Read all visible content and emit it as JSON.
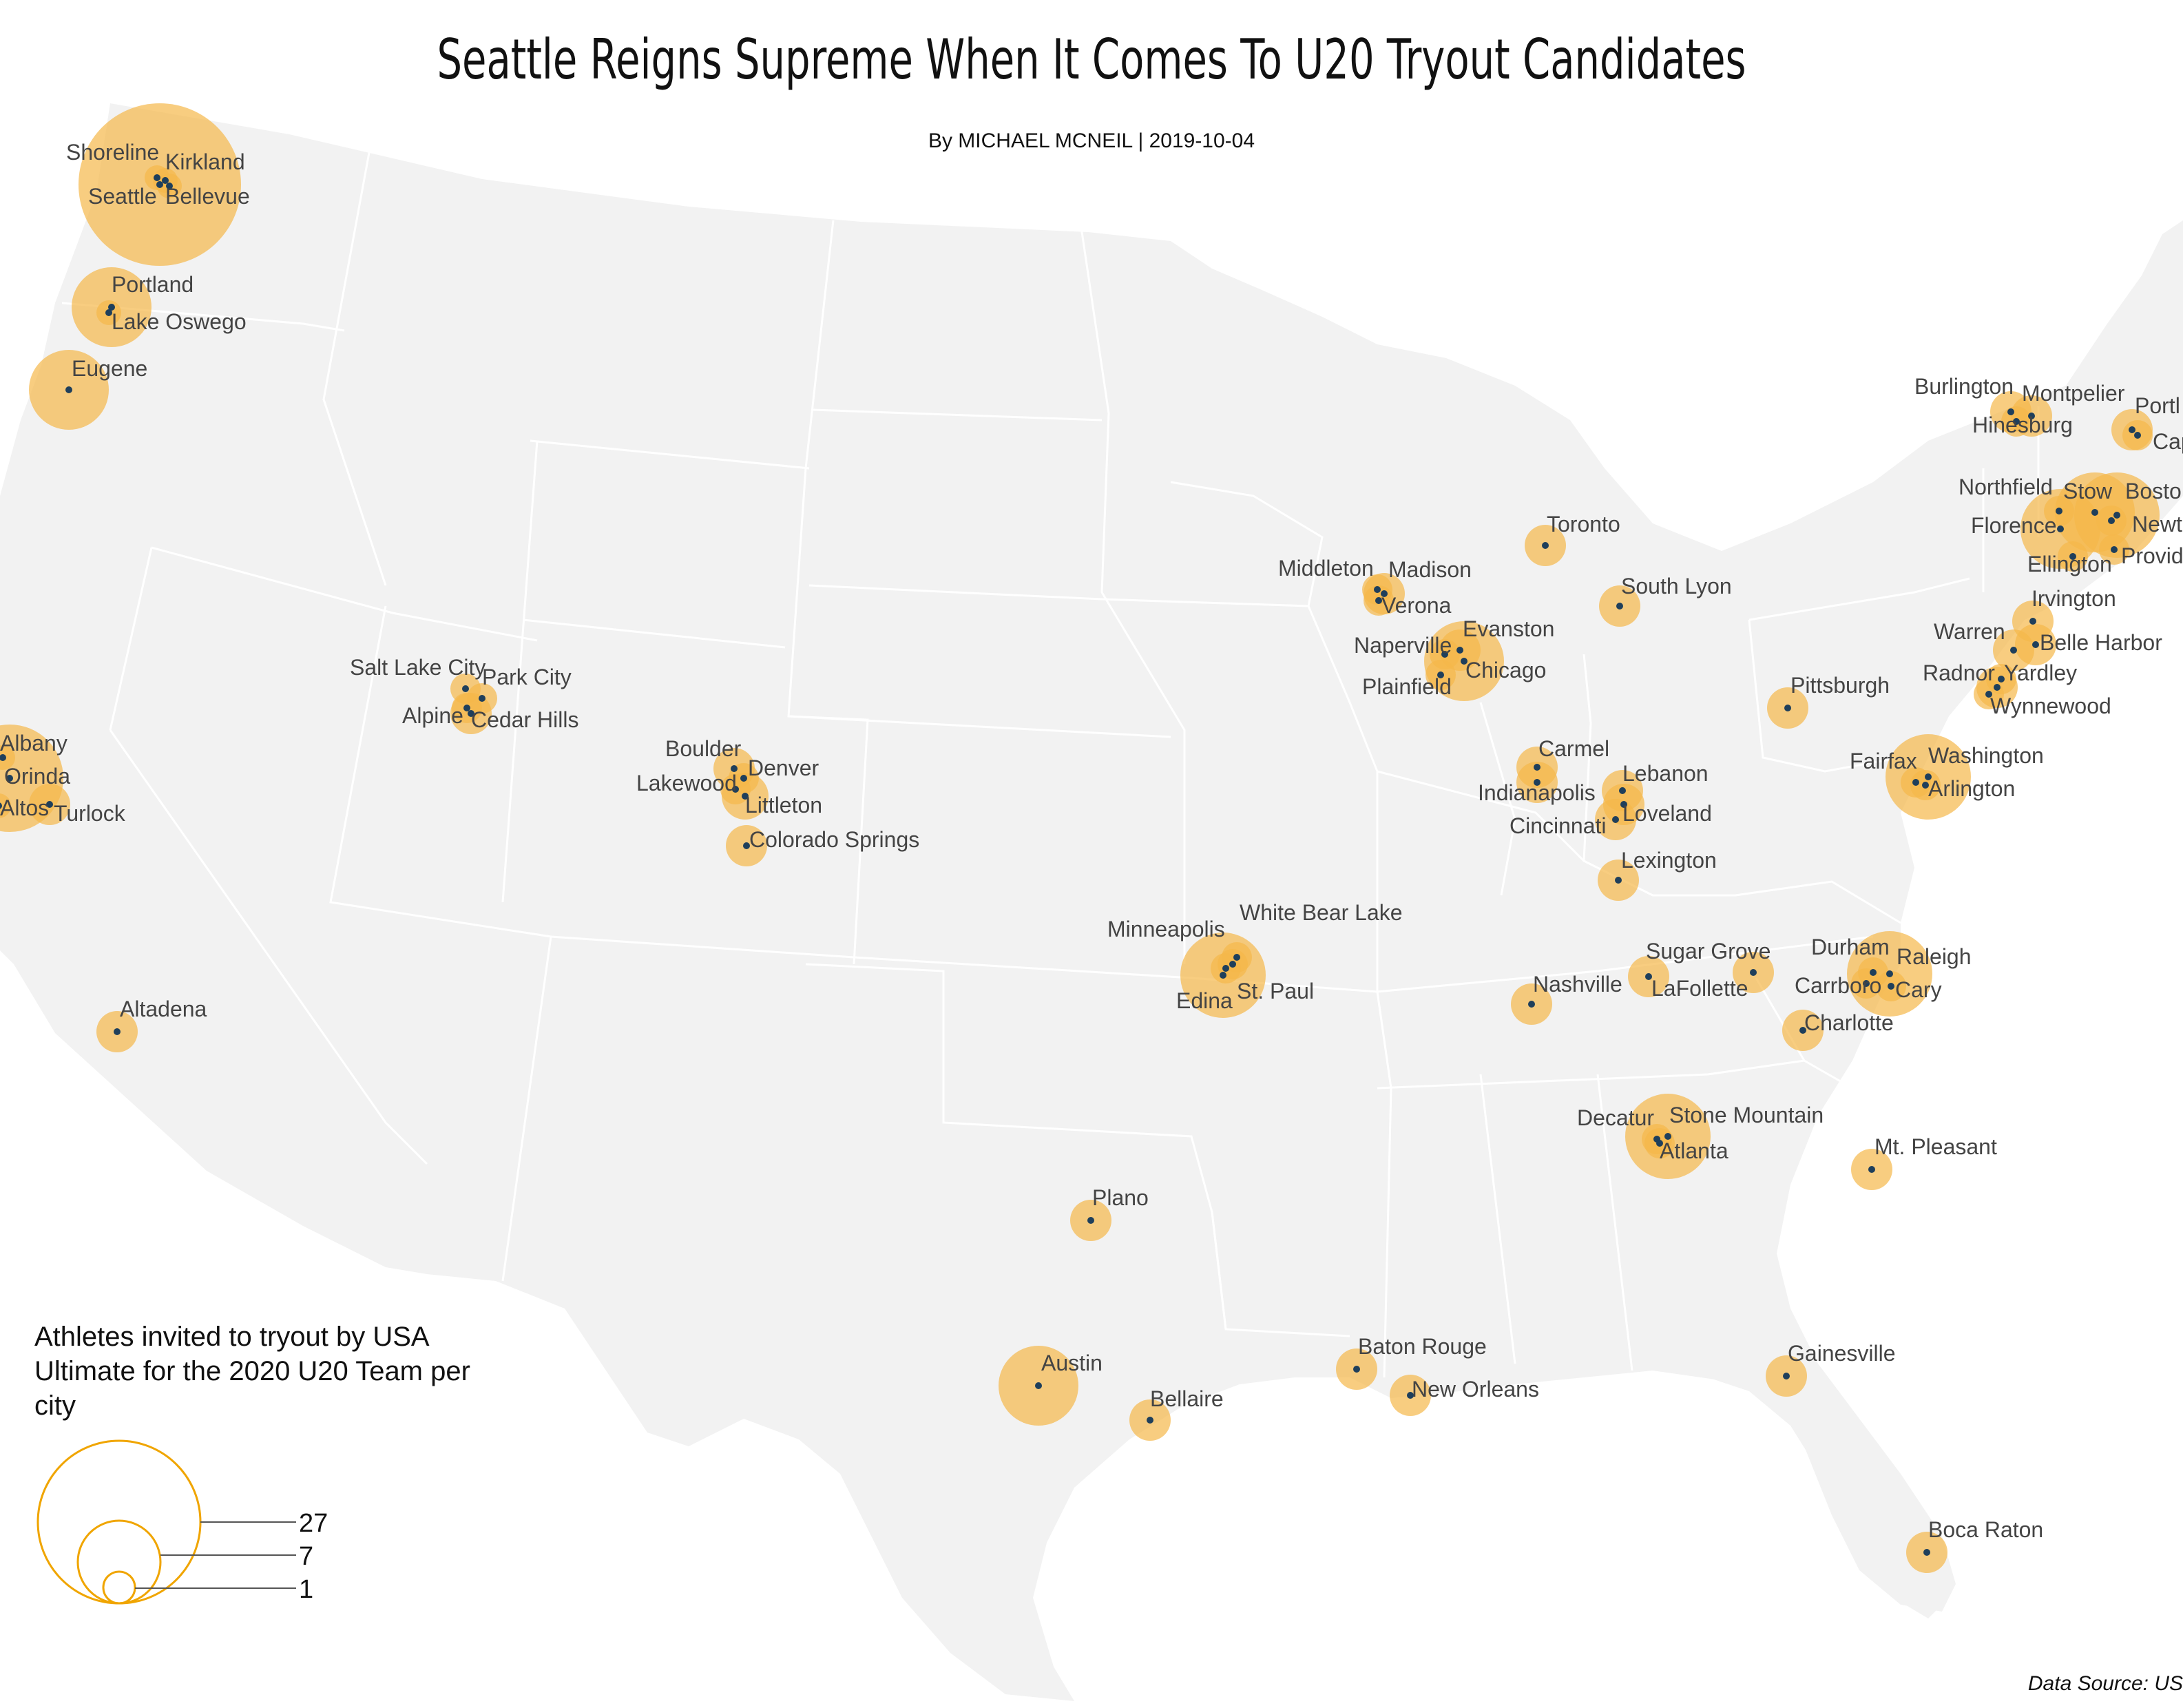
{
  "title": "Seattle Reigns Supreme When It Comes To U20 Tryout Candidates",
  "byline": "By MICHAEL MCNEIL | 2019-10-04",
  "legend": {
    "title": "Athletes invited to tryout by USA Ultimate for the 2020 U20 Team per city",
    "values": [
      "27",
      "7",
      "1"
    ]
  },
  "source": "Data Source: US",
  "colors": {
    "bubble": "#F5B84A",
    "dot": "#1F3F5B",
    "land": "#F2F2F2",
    "borders": "#FFFFFF",
    "legend_ring": "#F0A500"
  },
  "cities": [
    {
      "name": "Shoreline"
    },
    {
      "name": "Kirkland"
    },
    {
      "name": "Seattle"
    },
    {
      "name": "Bellevue"
    },
    {
      "name": "Portland"
    },
    {
      "name": "Lake Oswego"
    },
    {
      "name": "Eugene"
    },
    {
      "name": "Albany"
    },
    {
      "name": "Orinda"
    },
    {
      "name": "Altos"
    },
    {
      "name": "Turlock"
    },
    {
      "name": "Altadena"
    },
    {
      "name": "Salt Lake City"
    },
    {
      "name": "Park City"
    },
    {
      "name": "Alpine"
    },
    {
      "name": "Cedar Hills"
    },
    {
      "name": "Boulder"
    },
    {
      "name": "Denver"
    },
    {
      "name": "Lakewood"
    },
    {
      "name": "Littleton"
    },
    {
      "name": "Colorado Springs"
    },
    {
      "name": "Minneapolis"
    },
    {
      "name": "White Bear Lake"
    },
    {
      "name": "Edina"
    },
    {
      "name": "St. Paul"
    },
    {
      "name": "Middleton"
    },
    {
      "name": "Madison"
    },
    {
      "name": "Verona"
    },
    {
      "name": "Naperville"
    },
    {
      "name": "Evanston"
    },
    {
      "name": "Chicago"
    },
    {
      "name": "Plainfield"
    },
    {
      "name": "Toronto"
    },
    {
      "name": "South Lyon"
    },
    {
      "name": "Carmel"
    },
    {
      "name": "Indianapolis"
    },
    {
      "name": "Lebanon"
    },
    {
      "name": "Cincinnati"
    },
    {
      "name": "Loveland"
    },
    {
      "name": "Lexington"
    },
    {
      "name": "Pittsburgh"
    },
    {
      "name": "Burlington"
    },
    {
      "name": "Montpelier"
    },
    {
      "name": "Hinesburg"
    },
    {
      "name": "Portl"
    },
    {
      "name": "Cape"
    },
    {
      "name": "Northfield"
    },
    {
      "name": "Stow"
    },
    {
      "name": "Bostor"
    },
    {
      "name": "Florence"
    },
    {
      "name": "Newto"
    },
    {
      "name": "Ellington"
    },
    {
      "name": "Provid"
    },
    {
      "name": "Irvington"
    },
    {
      "name": "Warren"
    },
    {
      "name": "Belle Harbor"
    },
    {
      "name": "Radnor"
    },
    {
      "name": "Yardley"
    },
    {
      "name": "Wynnewood"
    },
    {
      "name": "Fairfax"
    },
    {
      "name": "Washington"
    },
    {
      "name": "Arlington"
    },
    {
      "name": "Sugar Grove"
    },
    {
      "name": "LaFollette"
    },
    {
      "name": "Nashville"
    },
    {
      "name": "Durham"
    },
    {
      "name": "Raleigh"
    },
    {
      "name": "Carrboro"
    },
    {
      "name": "Cary"
    },
    {
      "name": "Charlotte"
    },
    {
      "name": "Decatur"
    },
    {
      "name": "Stone Mountain"
    },
    {
      "name": "Atlanta"
    },
    {
      "name": "Mt. Pleasant"
    },
    {
      "name": "Plano"
    },
    {
      "name": "Austin"
    },
    {
      "name": "Bellaire"
    },
    {
      "name": "Baton Rouge"
    },
    {
      "name": "New Orleans"
    },
    {
      "name": "Gainesville"
    },
    {
      "name": "Boca Raton"
    }
  ]
}
